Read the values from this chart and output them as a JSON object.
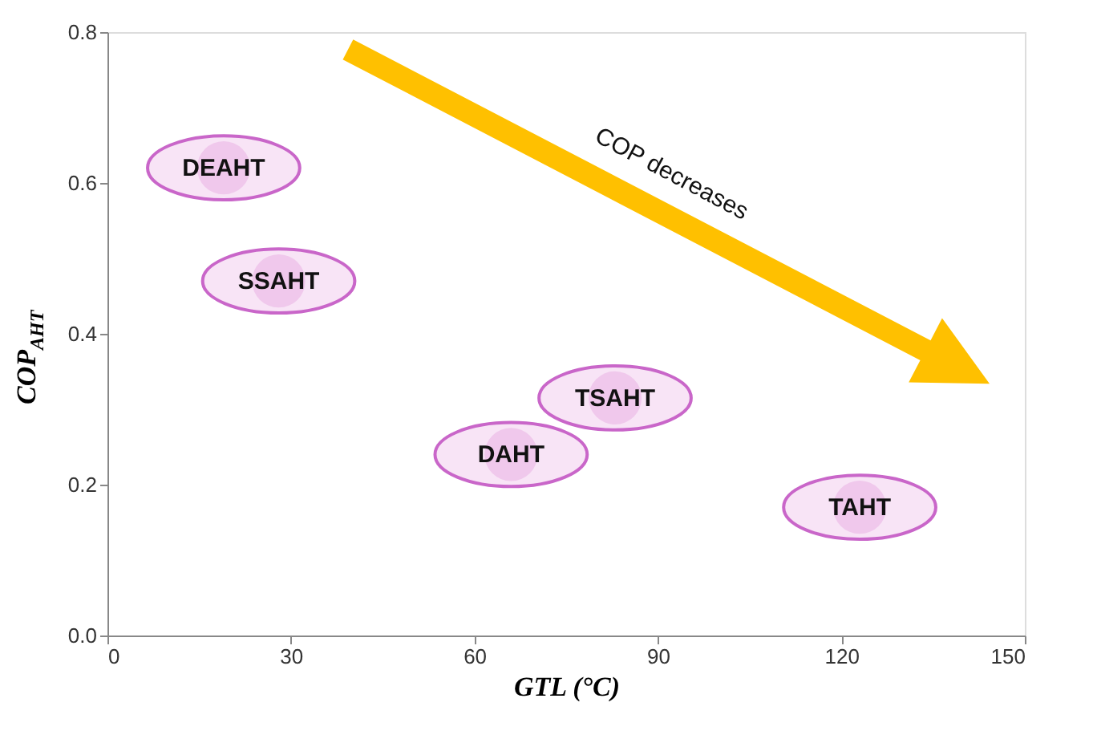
{
  "chart_data": {
    "type": "scatter",
    "xlabel": "GTL (°C)",
    "ylabel": "COP$_{AHT}$",
    "series": [
      {
        "color": "#f0c8ec",
        "x": [
          19,
          28,
          83,
          66,
          123
        ],
        "values": [
          0.62,
          0.47,
          0.315,
          0.24,
          0.17
        ]
      }
    ],
    "marker": "circle",
    "grid": false,
    "xlim": [
      0,
      150
    ],
    "xticks": [
      0,
      30,
      60,
      90,
      120,
      150
    ],
    "ylim": [
      0,
      0.8
    ],
    "yticks": [
      {
        "value": 0,
        "label": "0.0"
      },
      {
        "value": 0.2,
        "label": "0.2"
      },
      {
        "value": 0.4,
        "label": "0.4"
      },
      {
        "value": 0.6,
        "label": "0.6"
      },
      {
        "value": 0.8,
        "label": "0.8"
      }
    ],
    "annotations": [
      {
        "text": "DEAHT",
        "x": 19,
        "y": 0.62
      },
      {
        "text": "SSAHT",
        "x": 28,
        "y": 0.47
      },
      {
        "text": "TSAHT",
        "x": 83,
        "y": 0.315
      },
      {
        "text": "DAHT",
        "x": 66,
        "y": 0.24
      },
      {
        "text": "TAHT",
        "x": 123,
        "y": 0.17
      },
      "COP decreases"
    ]
  }
}
